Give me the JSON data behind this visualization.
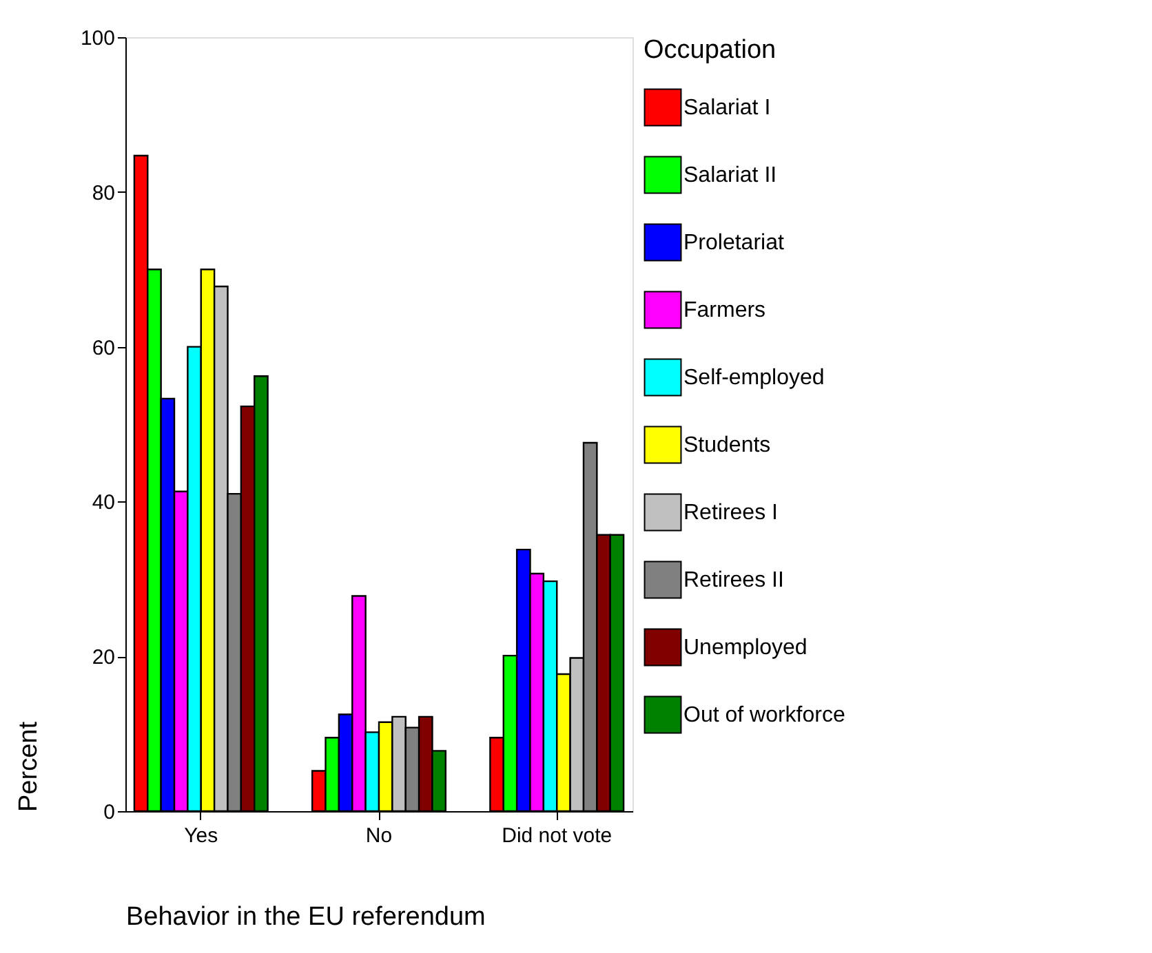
{
  "chart_data": {
    "type": "bar",
    "xlabel": "Behavior in the EU referendum",
    "ylabel": "Percent",
    "legend_title": "Occupation",
    "legend": "right",
    "grid": false,
    "categories": [
      "Yes",
      "No",
      "Did not vote"
    ],
    "ylim": [
      0,
      100
    ],
    "yticks": [
      0,
      20,
      40,
      60,
      80,
      100
    ],
    "series": [
      {
        "name": "Salariat I",
        "color": "#ff0000",
        "values": [
          84.7,
          5.2,
          9.5
        ]
      },
      {
        "name": "Salariat II",
        "color": "#00ff00",
        "values": [
          70,
          9.5,
          20.1
        ]
      },
      {
        "name": "Proletariat",
        "color": "#0000ff",
        "values": [
          53.3,
          12.5,
          33.8
        ]
      },
      {
        "name": "Farmers",
        "color": "#ff00ff",
        "values": [
          41.3,
          27.8,
          30.7
        ]
      },
      {
        "name": "Self-employed",
        "color": "#00ffff",
        "values": [
          60,
          10.2,
          29.7
        ]
      },
      {
        "name": "Students",
        "color": "#ffff00",
        "values": [
          70,
          11.5,
          17.7
        ]
      },
      {
        "name": "Retirees I",
        "color": "#c0c0c0",
        "values": [
          67.8,
          12.2,
          19.8
        ]
      },
      {
        "name": "Retirees II",
        "color": "#808080",
        "values": [
          41,
          10.8,
          47.6
        ]
      },
      {
        "name": "Unemployed",
        "color": "#800000",
        "values": [
          52.3,
          12.2,
          35.7
        ]
      },
      {
        "name": "Out of workforce",
        "color": "#008000",
        "values": [
          56.2,
          7.8,
          35.7
        ]
      }
    ]
  }
}
